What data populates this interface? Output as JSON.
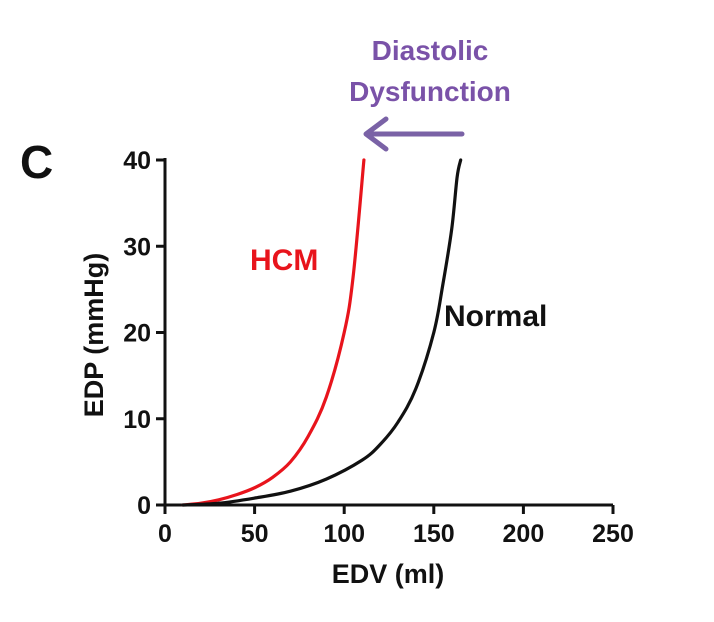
{
  "panel_label": "C",
  "chart_data": {
    "type": "line",
    "xlabel": "EDV (ml)",
    "ylabel": "EDP (mmHg)",
    "xlim": [
      0,
      250
    ],
    "ylim": [
      0,
      40
    ],
    "xticks": [
      0,
      50,
      100,
      150,
      200,
      250
    ],
    "yticks": [
      0,
      10,
      20,
      30,
      40
    ],
    "grid": false,
    "series": [
      {
        "name": "HCM",
        "color": "#e8141c",
        "points": [
          [
            10,
            0
          ],
          [
            20,
            0.2
          ],
          [
            30,
            0.6
          ],
          [
            40,
            1.2
          ],
          [
            50,
            2.0
          ],
          [
            60,
            3.2
          ],
          [
            70,
            5.0
          ],
          [
            80,
            8.0
          ],
          [
            90,
            12.5
          ],
          [
            100,
            20.0
          ],
          [
            105,
            26.5
          ],
          [
            111,
            40.0
          ]
        ]
      },
      {
        "name": "Normal",
        "color": "#111111",
        "points": [
          [
            10,
            0
          ],
          [
            30,
            0.2
          ],
          [
            50,
            0.8
          ],
          [
            70,
            1.6
          ],
          [
            90,
            3.0
          ],
          [
            110,
            5.2
          ],
          [
            120,
            7.0
          ],
          [
            130,
            9.6
          ],
          [
            140,
            13.5
          ],
          [
            150,
            20.0
          ],
          [
            155,
            25.5
          ],
          [
            160,
            32.0
          ],
          [
            163,
            38.0
          ],
          [
            165,
            40.0
          ]
        ]
      }
    ],
    "annotations": [
      {
        "text": "Diastolic",
        "color": "#7a52a8"
      },
      {
        "text": "Dysfunction",
        "color": "#7a52a8"
      }
    ],
    "arrow": {
      "direction": "left",
      "color": "#7a62a6"
    }
  }
}
